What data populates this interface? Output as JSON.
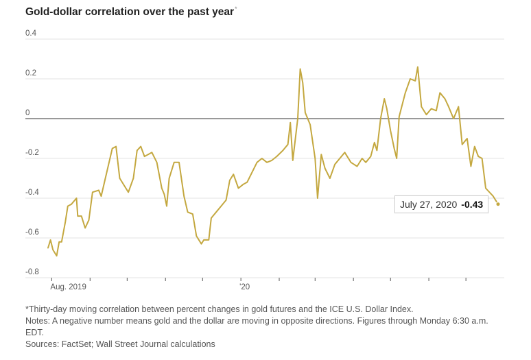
{
  "title": "Gold-dollar correlation over the past year",
  "title_marker": "*",
  "callout": {
    "date": "July 27, 2020",
    "value": "-0.43"
  },
  "footnote": "*Thirty-day moving correlation between percent changes in gold futures and the ICE U.S. Dollar Index.",
  "notes": "Notes: A negative number means gold and the dollar are moving in opposite directions. Figures through Monday 6:30 a.m. EDT.",
  "sources": "Sources: FactSet; Wall Street Journal calculations",
  "colors": {
    "line": "#c4a840",
    "grid": "#e3e3e3",
    "zero": "#333333",
    "text": "#555555"
  },
  "chart_data": {
    "type": "line",
    "title": "Gold-dollar correlation over the past year",
    "xlabel": "",
    "ylabel": "",
    "ylim": [
      -0.8,
      0.4
    ],
    "yticks": [
      0.4,
      0.2,
      0,
      -0.2,
      -0.4,
      -0.6,
      -0.8
    ],
    "ytick_labels": [
      "0.4",
      "0.2",
      "0",
      "-0.2",
      "-0.4",
      "-0.6",
      "-0.8"
    ],
    "xlim": [
      "2019-07-29",
      "2020-07-27"
    ],
    "xtick_labels": [
      {
        "date": "2019-08-01",
        "label": "Aug. 2019"
      },
      {
        "date": "2019-09-01",
        "label": ""
      },
      {
        "date": "2019-10-01",
        "label": ""
      },
      {
        "date": "2019-11-01",
        "label": ""
      },
      {
        "date": "2019-12-01",
        "label": ""
      },
      {
        "date": "2020-01-01",
        "label": "'20"
      },
      {
        "date": "2020-02-01",
        "label": ""
      },
      {
        "date": "2020-03-01",
        "label": ""
      },
      {
        "date": "2020-04-01",
        "label": ""
      },
      {
        "date": "2020-05-01",
        "label": ""
      },
      {
        "date": "2020-06-01",
        "label": ""
      },
      {
        "date": "2020-07-01",
        "label": ""
      }
    ],
    "grid": "horizontal",
    "series": [
      {
        "values": [
          [
            "2019-07-29",
            -0.65
          ],
          [
            "2019-07-31",
            -0.61
          ],
          [
            "2019-08-02",
            -0.66
          ],
          [
            "2019-08-05",
            -0.69
          ],
          [
            "2019-08-07",
            -0.62
          ],
          [
            "2019-08-09",
            -0.62
          ],
          [
            "2019-08-12",
            -0.52
          ],
          [
            "2019-08-14",
            -0.44
          ],
          [
            "2019-08-17",
            -0.43
          ],
          [
            "2019-08-21",
            -0.4
          ],
          [
            "2019-08-22",
            -0.49
          ],
          [
            "2019-08-25",
            -0.49
          ],
          [
            "2019-08-28",
            -0.55
          ],
          [
            "2019-08-31",
            -0.51
          ],
          [
            "2019-09-03",
            -0.37
          ],
          [
            "2019-09-08",
            -0.36
          ],
          [
            "2019-09-10",
            -0.39
          ],
          [
            "2019-09-13",
            -0.31
          ],
          [
            "2019-09-16",
            -0.23
          ],
          [
            "2019-09-19",
            -0.15
          ],
          [
            "2019-09-22",
            -0.14
          ],
          [
            "2019-09-25",
            -0.3
          ],
          [
            "2019-09-29",
            -0.34
          ],
          [
            "2019-10-02",
            -0.37
          ],
          [
            "2019-10-06",
            -0.3
          ],
          [
            "2019-10-09",
            -0.16
          ],
          [
            "2019-10-12",
            -0.14
          ],
          [
            "2019-10-15",
            -0.19
          ],
          [
            "2019-10-18",
            -0.18
          ],
          [
            "2019-10-21",
            -0.17
          ],
          [
            "2019-10-25",
            -0.22
          ],
          [
            "2019-10-29",
            -0.35
          ],
          [
            "2019-10-31",
            -0.38
          ],
          [
            "2019-11-02",
            -0.44
          ],
          [
            "2019-11-04",
            -0.3
          ],
          [
            "2019-11-08",
            -0.22
          ],
          [
            "2019-11-12",
            -0.22
          ],
          [
            "2019-11-16",
            -0.39
          ],
          [
            "2019-11-19",
            -0.47
          ],
          [
            "2019-11-23",
            -0.48
          ],
          [
            "2019-11-26",
            -0.59
          ],
          [
            "2019-11-30",
            -0.63
          ],
          [
            "2019-12-02",
            -0.61
          ],
          [
            "2019-12-06",
            -0.61
          ],
          [
            "2019-12-08",
            -0.5
          ],
          [
            "2019-12-12",
            -0.47
          ],
          [
            "2019-12-16",
            -0.44
          ],
          [
            "2019-12-20",
            -0.41
          ],
          [
            "2019-12-23",
            -0.31
          ],
          [
            "2019-12-26",
            -0.28
          ],
          [
            "2019-12-30",
            -0.35
          ],
          [
            "2020-01-03",
            -0.33
          ],
          [
            "2020-01-06",
            -0.32
          ],
          [
            "2020-01-10",
            -0.27
          ],
          [
            "2020-01-14",
            -0.22
          ],
          [
            "2020-01-18",
            -0.2
          ],
          [
            "2020-01-22",
            -0.22
          ],
          [
            "2020-01-26",
            -0.21
          ],
          [
            "2020-01-30",
            -0.19
          ],
          [
            "2020-02-04",
            -0.16
          ],
          [
            "2020-02-08",
            -0.13
          ],
          [
            "2020-02-10",
            -0.02
          ],
          [
            "2020-02-12",
            -0.21
          ],
          [
            "2020-02-16",
            0.0
          ],
          [
            "2020-02-18",
            0.25
          ],
          [
            "2020-02-20",
            0.18
          ],
          [
            "2020-02-22",
            0.03
          ],
          [
            "2020-02-26",
            -0.03
          ],
          [
            "2020-03-01",
            -0.2
          ],
          [
            "2020-03-03",
            -0.4
          ],
          [
            "2020-03-06",
            -0.18
          ],
          [
            "2020-03-09",
            -0.25
          ],
          [
            "2020-03-13",
            -0.3
          ],
          [
            "2020-03-17",
            -0.23
          ],
          [
            "2020-03-21",
            -0.2
          ],
          [
            "2020-03-25",
            -0.17
          ],
          [
            "2020-03-30",
            -0.22
          ],
          [
            "2020-04-04",
            -0.24
          ],
          [
            "2020-04-08",
            -0.2
          ],
          [
            "2020-04-11",
            -0.22
          ],
          [
            "2020-04-15",
            -0.19
          ],
          [
            "2020-04-18",
            -0.12
          ],
          [
            "2020-04-20",
            -0.16
          ],
          [
            "2020-04-23",
            0.0
          ],
          [
            "2020-04-26",
            0.1
          ],
          [
            "2020-04-28",
            0.05
          ],
          [
            "2020-05-01",
            -0.06
          ],
          [
            "2020-05-04",
            -0.15
          ],
          [
            "2020-05-06",
            -0.2
          ],
          [
            "2020-05-08",
            0.01
          ],
          [
            "2020-05-13",
            0.13
          ],
          [
            "2020-05-17",
            0.2
          ],
          [
            "2020-05-21",
            0.19
          ],
          [
            "2020-05-23",
            0.26
          ],
          [
            "2020-05-26",
            0.06
          ],
          [
            "2020-05-30",
            0.02
          ],
          [
            "2020-06-03",
            0.05
          ],
          [
            "2020-06-07",
            0.04
          ],
          [
            "2020-06-10",
            0.13
          ],
          [
            "2020-06-14",
            0.1
          ],
          [
            "2020-06-17",
            0.06
          ],
          [
            "2020-06-21",
            0.0
          ],
          [
            "2020-06-25",
            0.06
          ],
          [
            "2020-06-28",
            -0.13
          ],
          [
            "2020-07-02",
            -0.1
          ],
          [
            "2020-07-05",
            -0.24
          ],
          [
            "2020-07-08",
            -0.14
          ],
          [
            "2020-07-11",
            -0.19
          ],
          [
            "2020-07-14",
            -0.2
          ],
          [
            "2020-07-17",
            -0.35
          ],
          [
            "2020-07-23",
            -0.39
          ],
          [
            "2020-07-27",
            -0.43
          ]
        ]
      }
    ]
  }
}
